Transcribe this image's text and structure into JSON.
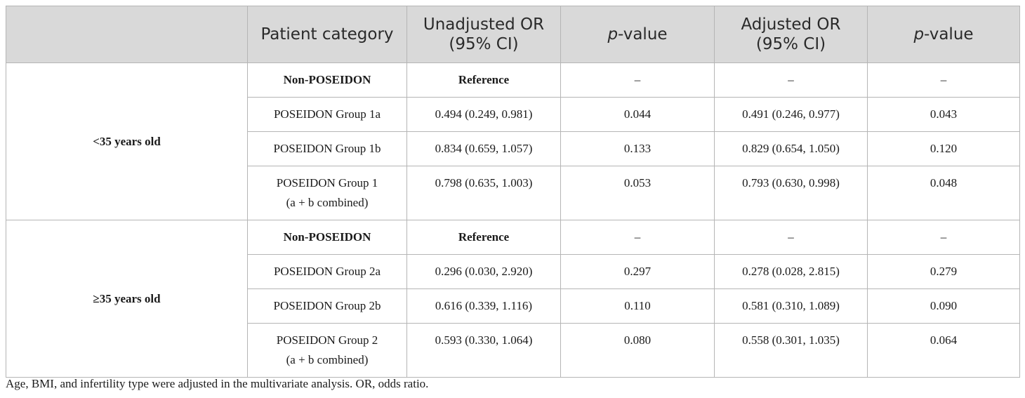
{
  "table": {
    "headers": {
      "patient_category": "Patient category",
      "unadjusted_line1": "Unadjusted OR",
      "unadjusted_line2": "(95% CI)",
      "pvalue_p": "p",
      "pvalue_rest": "-value",
      "adjusted_line1": "Adjusted OR",
      "adjusted_line2": "(95% CI)"
    },
    "groups": [
      {
        "age_label": "<35 years old",
        "rows": [
          {
            "category_line1": "Non-POSEIDON",
            "category_line2": "",
            "unadjusted": "Reference",
            "p_unadj": "–",
            "adjusted": "–",
            "p_adj": "–"
          },
          {
            "category_line1": "POSEIDON Group 1a",
            "category_line2": "",
            "unadjusted": "0.494 (0.249, 0.981)",
            "p_unadj": "0.044",
            "adjusted": "0.491 (0.246, 0.977)",
            "p_adj": "0.043"
          },
          {
            "category_line1": "POSEIDON Group 1b",
            "category_line2": "",
            "unadjusted": "0.834 (0.659, 1.057)",
            "p_unadj": "0.133",
            "adjusted": "0.829 (0.654, 1.050)",
            "p_adj": "0.120"
          },
          {
            "category_line1": "POSEIDON Group 1",
            "category_line2": "(a + b combined)",
            "unadjusted": "0.798 (0.635, 1.003)",
            "p_unadj": "0.053",
            "adjusted": "0.793 (0.630, 0.998)",
            "p_adj": "0.048"
          }
        ]
      },
      {
        "age_label": "≥35 years old",
        "rows": [
          {
            "category_line1": "Non-POSEIDON",
            "category_line2": "",
            "unadjusted": "Reference",
            "p_unadj": "–",
            "adjusted": "–",
            "p_adj": "–"
          },
          {
            "category_line1": "POSEIDON Group 2a",
            "category_line2": "",
            "unadjusted": "0.296 (0.030, 2.920)",
            "p_unadj": "0.297",
            "adjusted": "0.278 (0.028, 2.815)",
            "p_adj": "0.279"
          },
          {
            "category_line1": "POSEIDON Group 2b",
            "category_line2": "",
            "unadjusted": "0.616 (0.339, 1.116)",
            "p_unadj": "0.110",
            "adjusted": "0.581 (0.310, 1.089)",
            "p_adj": "0.090"
          },
          {
            "category_line1": "POSEIDON Group 2",
            "category_line2": "(a + b combined)",
            "unadjusted": "0.593 (0.330, 1.064)",
            "p_unadj": "0.080",
            "adjusted": "0.558 (0.301, 1.035)",
            "p_adj": "0.064"
          }
        ]
      }
    ]
  },
  "footnote": "Age, BMI, and infertility type were adjusted in the multivariate analysis. OR, odds ratio."
}
